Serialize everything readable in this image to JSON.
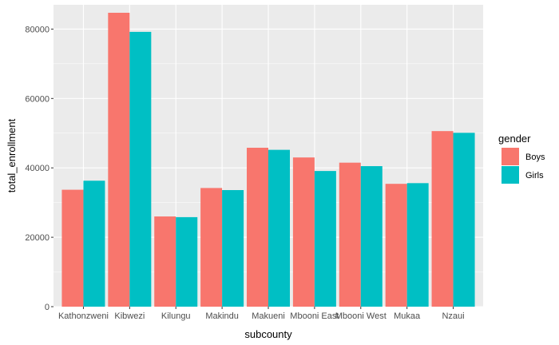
{
  "chart_data": {
    "type": "bar",
    "xlabel": "subcounty",
    "ylabel": "total_enrollment",
    "categories": [
      "Kathonzweni",
      "Kibwezi",
      "Kilungu",
      "Makindu",
      "Makueni",
      "Mbooni East",
      "Mbooni West",
      "Mukaa",
      "Nzaui"
    ],
    "series": [
      {
        "name": "Boys",
        "color": "#F8766D",
        "values": [
          33700,
          84700,
          26000,
          34200,
          45800,
          43000,
          41500,
          35400,
          50600
        ]
      },
      {
        "name": "Girls",
        "color": "#00BFC4",
        "values": [
          36300,
          79200,
          25800,
          33600,
          45200,
          39100,
          40500,
          35600,
          50100
        ]
      }
    ],
    "ylim": [
      0,
      87000
    ],
    "yticks": [
      0,
      20000,
      40000,
      60000,
      80000
    ],
    "ytick_labels": [
      "0",
      "20000",
      "40000",
      "60000",
      "80000"
    ],
    "legend": {
      "title": "gender",
      "position": "right"
    },
    "grid": true,
    "panel_background": "#EBEBEB",
    "grid_color": "#FFFFFF"
  }
}
